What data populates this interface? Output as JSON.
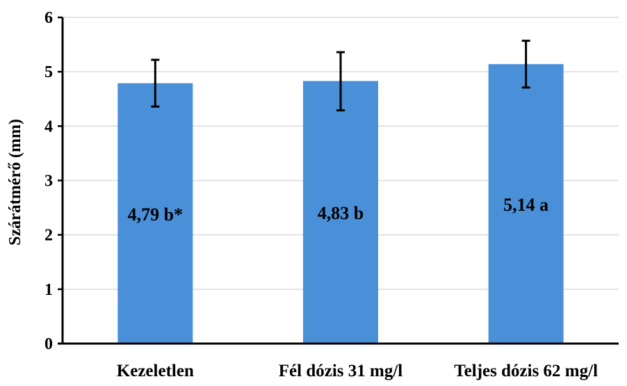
{
  "chart_data": {
    "type": "bar",
    "title": "",
    "xlabel": "",
    "ylabel": "Szárátmérő (mm)",
    "ylim": [
      0,
      6
    ],
    "yticks": [
      0,
      1,
      2,
      3,
      4,
      5,
      6
    ],
    "grid": true,
    "legend": "none",
    "categories": [
      "Kezeletlen",
      "Fél dózis 31 mg/l",
      "Teljes dózis 62 mg/l"
    ],
    "values": [
      4.79,
      4.83,
      5.14
    ],
    "error_low": [
      4.36,
      4.29,
      4.71
    ],
    "error_high": [
      5.22,
      5.36,
      5.57
    ],
    "data_labels": [
      "4,79 b*",
      "4,83 b",
      "5,14 a"
    ],
    "colors": {
      "bar": "#4a90d9",
      "error_bar": "#000000",
      "grid": "#d9d9d9",
      "axis": "#000000"
    }
  }
}
